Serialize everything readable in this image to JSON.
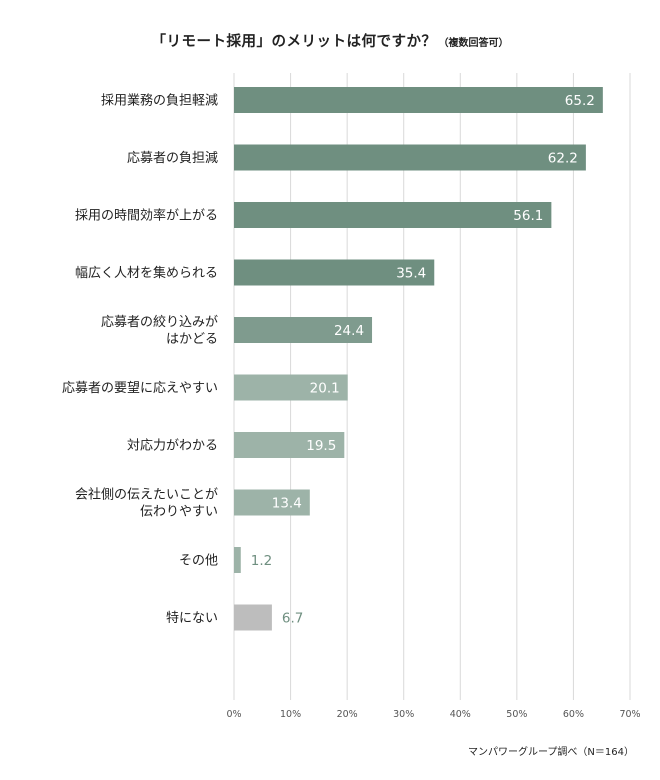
{
  "header": {
    "title": "「リモート採用」のメリットは何ですか？",
    "subtitle": "（複数回答可）"
  },
  "footer": {
    "source": "マンパワーグループ調べ（N＝164）"
  },
  "chart_data": {
    "type": "bar",
    "orientation": "horizontal",
    "categories": [
      [
        "採用業務の負担軽減"
      ],
      [
        "応募者の負担減"
      ],
      [
        "採用の時間効率が上がる"
      ],
      [
        "幅広く人材を集められる"
      ],
      [
        "応募者の絞り込みが",
        "はかどる"
      ],
      [
        "応募者の要望に応えやすい"
      ],
      [
        "対応力がわかる"
      ],
      [
        "会社側の伝えたいことが",
        "伝わりやすい"
      ],
      [
        "その他"
      ],
      [
        "特にない"
      ]
    ],
    "values": [
      65.2,
      62.2,
      56.1,
      35.4,
      24.4,
      20.1,
      19.5,
      13.4,
      1.2,
      6.7
    ],
    "value_labels": [
      "65.2",
      "62.2",
      "56.1",
      "35.4",
      "24.4",
      "20.1",
      "19.5",
      "13.4",
      "1.2",
      "6.7"
    ],
    "bar_colors": [
      "#6f8f80",
      "#6f8f80",
      "#6f8f80",
      "#6f8f80",
      "#7f9b8e",
      "#9db3a8",
      "#9db3a8",
      "#9db3a8",
      "#9db3a8",
      "#bdbdbd"
    ],
    "label_color_inside": "#ffffff",
    "label_color_outside": "#6f8f80",
    "xlim": [
      0,
      70
    ],
    "xticks": [
      0,
      10,
      20,
      30,
      40,
      50,
      60,
      70
    ],
    "xtick_labels": [
      "0%",
      "10%",
      "20%",
      "30%",
      "40%",
      "50%",
      "60%",
      "70%"
    ],
    "grid": true,
    "grid_color": "#d9d9d9"
  }
}
